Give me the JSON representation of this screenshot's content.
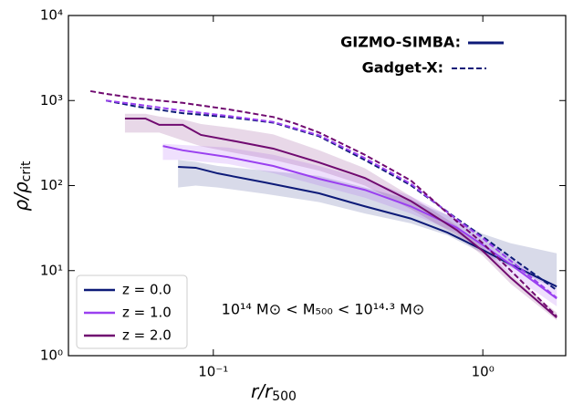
{
  "chart_data": {
    "type": "line",
    "log_x": true,
    "log_y": true,
    "xlabel": [
      "r/r",
      "500"
    ],
    "ylabel": [
      "ρ/ρ",
      "crit"
    ],
    "annotation": "10¹⁴ M⊙ < M₅₀₀ < 10¹⁴·³ M⊙",
    "xlim": [
      0.029,
      2.03
    ],
    "ylim": [
      1,
      10000
    ],
    "xticks": [
      {
        "value": 0.1,
        "label": "10⁻¹"
      },
      {
        "value": 1,
        "label": "10⁰"
      }
    ],
    "yticks": [
      {
        "value": 1,
        "label": "10⁰"
      },
      {
        "value": 10,
        "label": "10¹"
      },
      {
        "value": 100,
        "label": "10²"
      },
      {
        "value": 1000,
        "label": "10³"
      },
      {
        "value": 10000,
        "label": "10⁴"
      }
    ],
    "legend": "lower left",
    "styles": [
      {
        "name": "GIZMO-SIMBA:",
        "dashed": false
      },
      {
        "name": "Gadget-X:",
        "dashed": true
      }
    ],
    "series": [
      {
        "name": "z = 0.0",
        "color": "#0d1a78",
        "solid": {
          "x": [
            0.074,
            0.086,
            0.104,
            0.155,
            0.247,
            0.365,
            0.54,
            0.74,
            1.0,
            1.27,
            1.88
          ],
          "values": [
            166,
            162,
            139,
            109,
            81,
            57,
            41,
            28,
            17.5,
            11.8,
            6.5
          ],
          "lower": [
            95,
            100,
            95,
            80,
            64,
            47,
            36,
            26,
            16,
            11,
            6
          ],
          "upper": [
            200,
            190,
            170,
            150,
            130,
            95,
            68,
            45,
            27,
            21,
            16
          ]
        },
        "dashed": {
          "x": [
            0.04,
            0.052,
            0.077,
            0.113,
            0.167,
            0.247,
            0.365,
            0.54,
            0.8,
            1.0,
            1.27,
            1.88
          ],
          "values": [
            1000,
            850,
            710,
            640,
            550,
            380,
            200,
            101,
            41,
            25,
            14.4,
            5.9
          ]
        }
      },
      {
        "name": "z = 1.0",
        "color": "#9a40f0",
        "solid": {
          "x": [
            0.065,
            0.077,
            0.113,
            0.167,
            0.247,
            0.365,
            0.54,
            0.8,
            1.0,
            1.27,
            1.88
          ],
          "values": [
            292,
            260,
            217,
            170,
            120,
            89,
            57,
            32,
            20,
            11.8,
            4.7
          ],
          "lower": [
            200,
            200,
            180,
            140,
            100,
            72,
            47,
            28,
            17,
            9,
            3.8
          ],
          "upper": [
            310,
            300,
            280,
            230,
            170,
            120,
            75,
            40,
            23,
            14,
            6
          ]
        },
        "dashed": {
          "x": [
            0.04,
            0.052,
            0.077,
            0.113,
            0.167,
            0.247,
            0.365,
            0.54,
            0.8,
            1.0,
            1.27,
            1.88
          ],
          "values": [
            1000,
            900,
            760,
            660,
            560,
            390,
            210,
            105,
            40,
            24,
            13,
            4.8
          ]
        }
      },
      {
        "name": "z = 2.0",
        "color": "#700a70",
        "solid": {
          "x": [
            0.047,
            0.056,
            0.063,
            0.077,
            0.09,
            0.122,
            0.167,
            0.247,
            0.365,
            0.54,
            0.8,
            1.0,
            1.27,
            1.88
          ],
          "values": [
            614,
            614,
            518,
            518,
            394,
            330,
            272,
            187,
            123,
            66,
            30,
            17,
            8.2,
            2.8
          ],
          "lower": [
            420,
            420,
            420,
            340,
            290,
            240,
            200,
            150,
            100,
            53,
            26,
            15,
            7,
            2.6
          ],
          "upper": [
            700,
            700,
            650,
            600,
            530,
            470,
            400,
            260,
            160,
            75,
            34,
            19,
            9,
            3.2
          ]
        },
        "dashed": {
          "x": [
            0.035,
            0.04,
            0.052,
            0.077,
            0.113,
            0.167,
            0.2,
            0.247,
            0.365,
            0.54,
            0.8,
            1.0,
            1.27,
            1.88
          ],
          "values": [
            1290,
            1200,
            1060,
            940,
            790,
            640,
            540,
            420,
            230,
            115,
            38,
            21,
            10,
            2.9
          ]
        }
      }
    ]
  }
}
